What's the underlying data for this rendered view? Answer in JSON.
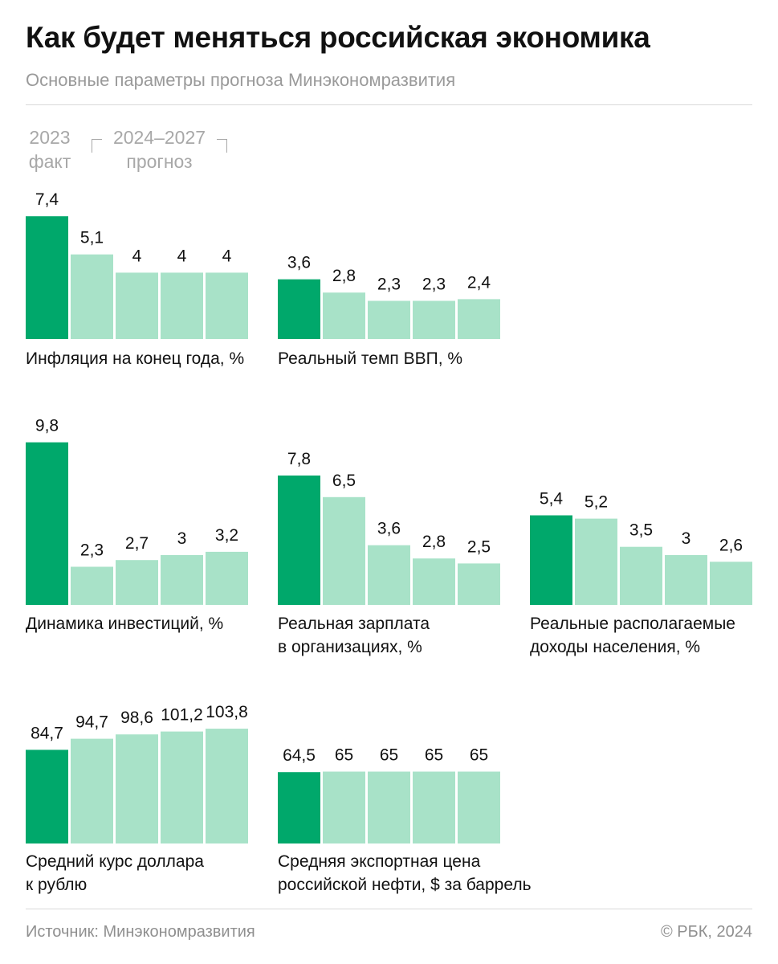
{
  "header": {
    "title": "Как будет меняться российская экономика",
    "subtitle": "Основные параметры прогноза Минэкономразвития"
  },
  "legend": {
    "fact_year": "2023",
    "fact_label": "факт",
    "forecast_years": "2024–2027",
    "forecast_label": "прогноз"
  },
  "colors": {
    "fact": "#00a86b",
    "forecast": "#a8e2c8"
  },
  "chart_data": [
    {
      "type": "bar",
      "title": "Инфляция на конец года, %",
      "label_lines": [
        "Инфляция на конец года, %"
      ],
      "categories": [
        "2023",
        "2024",
        "2025",
        "2026",
        "2027"
      ],
      "values": [
        7.4,
        5.1,
        4,
        4,
        4
      ],
      "value_labels": [
        "7,4",
        "5,1",
        "4",
        "4",
        "4"
      ]
    },
    {
      "type": "bar",
      "title": "Реальный темп ВВП, %",
      "label_lines": [
        "Реальный темп ВВП, %"
      ],
      "categories": [
        "2023",
        "2024",
        "2025",
        "2026",
        "2027"
      ],
      "values": [
        3.6,
        2.8,
        2.3,
        2.3,
        2.4
      ],
      "value_labels": [
        "3,6",
        "2,8",
        "2,3",
        "2,3",
        "2,4"
      ]
    },
    {
      "type": "bar",
      "title": "Динамика инвестиций, %",
      "label_lines": [
        "Динамика инвестиций, %"
      ],
      "categories": [
        "2023",
        "2024",
        "2025",
        "2026",
        "2027"
      ],
      "values": [
        9.8,
        2.3,
        2.7,
        3,
        3.2
      ],
      "value_labels": [
        "9,8",
        "2,3",
        "2,7",
        "3",
        "3,2"
      ]
    },
    {
      "type": "bar",
      "title": "Реальная зарплата в организациях, %",
      "label_lines": [
        "Реальная зарплата",
        "в организациях, %"
      ],
      "categories": [
        "2023",
        "2024",
        "2025",
        "2026",
        "2027"
      ],
      "values": [
        7.8,
        6.5,
        3.6,
        2.8,
        2.5
      ],
      "value_labels": [
        "7,8",
        "6,5",
        "3,6",
        "2,8",
        "2,5"
      ]
    },
    {
      "type": "bar",
      "title": "Реальные располагаемые доходы населения, %",
      "label_lines": [
        "Реальные располагаемые",
        "доходы населения, %"
      ],
      "categories": [
        "2023",
        "2024",
        "2025",
        "2026",
        "2027"
      ],
      "values": [
        5.4,
        5.2,
        3.5,
        3,
        2.6
      ],
      "value_labels": [
        "5,4",
        "5,2",
        "3,5",
        "3",
        "2,6"
      ]
    },
    {
      "type": "bar",
      "title": "Средний курс доллара к рублю",
      "label_lines": [
        "Средний курс доллара",
        "к рублю"
      ],
      "categories": [
        "2023",
        "2024",
        "2025",
        "2026",
        "2027"
      ],
      "values": [
        84.7,
        94.7,
        98.6,
        101.2,
        103.8
      ],
      "value_labels": [
        "84,7",
        "94,7",
        "98,6",
        "101,2",
        "103,8"
      ]
    },
    {
      "type": "bar",
      "title": "Средняя экспортная цена российской нефти, $ за баррель",
      "label_lines": [
        "Средняя экспортная цена",
        "российской нефти, $ за баррель"
      ],
      "categories": [
        "2023",
        "2024",
        "2025",
        "2026",
        "2027"
      ],
      "values": [
        64.5,
        65,
        65,
        65,
        65
      ],
      "value_labels": [
        "64,5",
        "65",
        "65",
        "65",
        "65"
      ]
    }
  ],
  "footer": {
    "source": "Источник: Минэкономразвития",
    "copyright": "© РБК, 2024"
  }
}
